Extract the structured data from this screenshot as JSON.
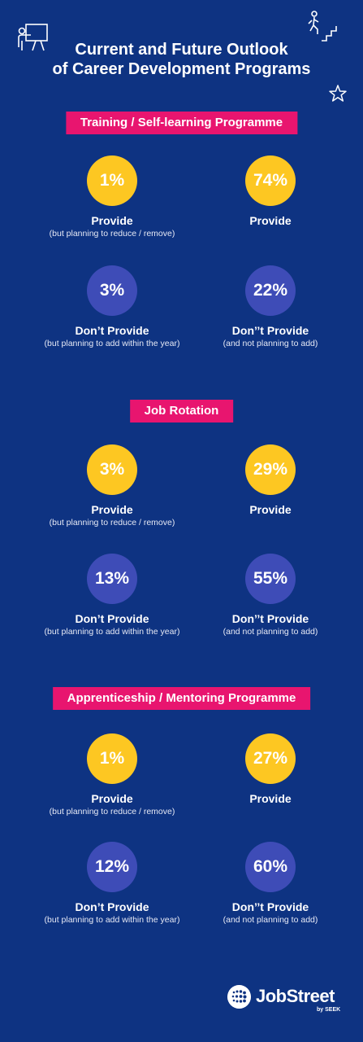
{
  "title_line1": "Current and Future Outlook",
  "title_line2": "of Career Development Programs",
  "colors": {
    "background": "#0e3382",
    "banner": "#e8156f",
    "yellow": "#fdc722",
    "purple": "#3e4cb7"
  },
  "icons": [
    "presentation-trainer-icon",
    "stairs-climb-icon",
    "star-outline-icon",
    "jobstreet-logo-icon"
  ],
  "sections": [
    {
      "banner": "Training / Self-learning Programme",
      "stats": [
        {
          "value": "1%",
          "label": "Provide",
          "sub": "(but planning to reduce / remove)"
        },
        {
          "value": "74%",
          "label": "Provide",
          "sub": ""
        },
        {
          "value": "3%",
          "label": "Don’t Provide",
          "sub": "(but planning to add within the year)"
        },
        {
          "value": "22%",
          "label": "Don’’t Provide",
          "sub": "(and not planning to add)"
        }
      ]
    },
    {
      "banner": "Job Rotation",
      "stats": [
        {
          "value": "3%",
          "label": "Provide",
          "sub": "(but planning to reduce / remove)"
        },
        {
          "value": "29%",
          "label": "Provide",
          "sub": ""
        },
        {
          "value": "13%",
          "label": "Don’t Provide",
          "sub": "(but planning to add within the year)"
        },
        {
          "value": "55%",
          "label": "Don’’t Provide",
          "sub": "(and not planning to add)"
        }
      ]
    },
    {
      "banner": "Apprenticeship / Mentoring Programme",
      "stats": [
        {
          "value": "1%",
          "label": "Provide",
          "sub": "(but planning to reduce / remove)"
        },
        {
          "value": "27%",
          "label": "Provide",
          "sub": ""
        },
        {
          "value": "12%",
          "label": "Don’t Provide",
          "sub": "(but planning to add within the year)"
        },
        {
          "value": "60%",
          "label": "Don’’t Provide",
          "sub": "(and not planning to add)"
        }
      ]
    }
  ],
  "logo": {
    "text": "JobStreet",
    "tagline": "by SEEK"
  }
}
